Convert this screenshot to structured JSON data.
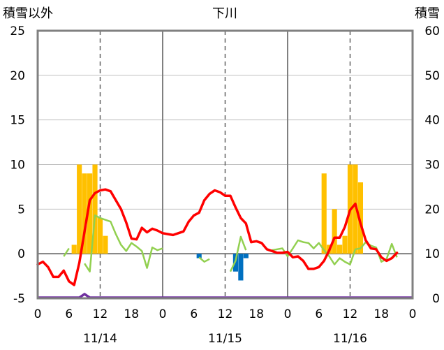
{
  "chart_data": {
    "type": "bar+line",
    "title": "下川",
    "left_axis_label": "積雪以外",
    "right_axis_label": "積雪",
    "y_left": {
      "min": -5,
      "max": 25,
      "ticks": [
        -5,
        0,
        5,
        10,
        15,
        20,
        25
      ]
    },
    "y_right": {
      "min": 0,
      "max": 60,
      "ticks": [
        0,
        10,
        20,
        30,
        40,
        50,
        60
      ]
    },
    "x_tick_labels": [
      "0",
      "6",
      "12",
      "18",
      "0",
      "6",
      "12",
      "18",
      "0",
      "6",
      "12",
      "18",
      "0"
    ],
    "date_labels": [
      "11/14",
      "11/15",
      "11/16"
    ],
    "x_range_hours": [
      0,
      72
    ],
    "grid": "vertical dashed at 12h, solid at day boundaries",
    "colors": {
      "precip_bar": "#FFC000",
      "negative_bar": "#0070C0",
      "temperature": "#FF0000",
      "wind": "#92D050",
      "snow_depth": "#7030A0"
    },
    "precipitation_bars": [
      {
        "x": 7,
        "y": 1
      },
      {
        "x": 8,
        "y": 10
      },
      {
        "x": 9,
        "y": 9
      },
      {
        "x": 10,
        "y": 9
      },
      {
        "x": 11,
        "y": 10
      },
      {
        "x": 12,
        "y": 4
      },
      {
        "x": 13,
        "y": 2
      },
      {
        "x": 55,
        "y": 9
      },
      {
        "x": 56,
        "y": 1
      },
      {
        "x": 57,
        "y": 5
      },
      {
        "x": 58,
        "y": 1
      },
      {
        "x": 59,
        "y": 2
      },
      {
        "x": 60,
        "y": 10
      },
      {
        "x": 61,
        "y": 10
      },
      {
        "x": 62,
        "y": 8
      }
    ],
    "negative_bars": [
      {
        "x": 31,
        "y": -0.5
      },
      {
        "x": 38,
        "y": -2
      },
      {
        "x": 39,
        "y": -3
      },
      {
        "x": 40,
        "y": -0.5
      }
    ],
    "temperature": [
      [
        0,
        -1.2
      ],
      [
        1,
        -0.9
      ],
      [
        2,
        -1.5
      ],
      [
        3,
        -2.6
      ],
      [
        4,
        -2.6
      ],
      [
        5,
        -1.9
      ],
      [
        6,
        -3.1
      ],
      [
        7,
        -3.5
      ],
      [
        8,
        -1.0
      ],
      [
        9,
        2.5
      ],
      [
        10,
        6.0
      ],
      [
        11,
        6.8
      ],
      [
        12,
        7.1
      ],
      [
        13,
        7.2
      ],
      [
        14,
        7.0
      ],
      [
        15,
        6.0
      ],
      [
        16,
        5.0
      ],
      [
        17,
        3.5
      ],
      [
        18,
        1.7
      ],
      [
        19,
        1.6
      ],
      [
        20,
        2.9
      ],
      [
        21,
        2.4
      ],
      [
        22,
        2.8
      ],
      [
        23,
        2.6
      ],
      [
        24,
        2.3
      ],
      [
        25,
        2.2
      ],
      [
        26,
        2.1
      ],
      [
        27,
        2.3
      ],
      [
        28,
        2.5
      ],
      [
        29,
        3.6
      ],
      [
        30,
        4.3
      ],
      [
        31,
        4.6
      ],
      [
        32,
        6.0
      ],
      [
        33,
        6.7
      ],
      [
        34,
        7.1
      ],
      [
        35,
        6.9
      ],
      [
        36,
        6.5
      ],
      [
        37,
        6.5
      ],
      [
        38,
        5.2
      ],
      [
        39,
        4.0
      ],
      [
        40,
        3.4
      ],
      [
        41,
        1.3
      ],
      [
        42,
        1.4
      ],
      [
        43,
        1.2
      ],
      [
        44,
        0.5
      ],
      [
        45,
        0.3
      ],
      [
        46,
        0.1
      ],
      [
        47,
        0.1
      ],
      [
        48,
        0.2
      ],
      [
        49,
        -0.4
      ],
      [
        50,
        -0.3
      ],
      [
        51,
        -0.8
      ],
      [
        52,
        -1.7
      ],
      [
        53,
        -1.7
      ],
      [
        54,
        -1.5
      ],
      [
        55,
        -0.8
      ],
      [
        56,
        0.4
      ],
      [
        57,
        1.8
      ],
      [
        58,
        1.8
      ],
      [
        59,
        3.0
      ],
      [
        60,
        4.9
      ],
      [
        61,
        5.6
      ],
      [
        62,
        3.4
      ],
      [
        63,
        1.5
      ],
      [
        64,
        0.6
      ],
      [
        65,
        0.5
      ],
      [
        66,
        -0.4
      ],
      [
        67,
        -0.8
      ],
      [
        68,
        -0.5
      ],
      [
        69,
        0.1
      ]
    ],
    "wind": [
      [
        [
          5,
          -0.3
        ],
        [
          6,
          0.6
        ]
      ],
      [
        [
          9,
          -1.1
        ],
        [
          10,
          -2.0
        ],
        [
          11,
          4.3
        ],
        [
          12,
          4.0
        ],
        [
          13,
          3.8
        ],
        [
          14,
          3.6
        ],
        [
          15,
          2.2
        ],
        [
          16,
          1.0
        ],
        [
          17,
          0.3
        ],
        [
          18,
          1.2
        ],
        [
          19,
          0.8
        ],
        [
          20,
          0.3
        ],
        [
          21,
          -1.6
        ],
        [
          22,
          0.7
        ],
        [
          23,
          0.4
        ],
        [
          24,
          0.6
        ]
      ],
      [
        [
          31,
          -0.4
        ],
        [
          32,
          -0.9
        ],
        [
          33,
          -0.6
        ]
      ],
      [
        [
          37,
          -2.0
        ],
        [
          38,
          -0.8
        ],
        [
          39,
          1.9
        ],
        [
          40,
          0.4
        ]
      ],
      [
        [
          45,
          0.4
        ],
        [
          46,
          0.5
        ],
        [
          47,
          0.6
        ],
        [
          48,
          -0.3
        ],
        [
          49,
          0.6
        ],
        [
          50,
          1.5
        ],
        [
          51,
          1.3
        ],
        [
          52,
          1.2
        ],
        [
          53,
          0.6
        ],
        [
          54,
          1.2
        ],
        [
          55,
          0.4
        ],
        [
          56,
          -0.3
        ],
        [
          57,
          -1.2
        ],
        [
          58,
          -0.5
        ],
        [
          59,
          -0.9
        ],
        [
          60,
          -1.2
        ],
        [
          61,
          0.5
        ],
        [
          62,
          0.6
        ],
        [
          63,
          1.3
        ],
        [
          64,
          0.9
        ],
        [
          65,
          0.7
        ],
        [
          66,
          -0.9
        ],
        [
          67,
          -0.6
        ],
        [
          68,
          1.1
        ],
        [
          69,
          -0.4
        ]
      ]
    ],
    "snow_depth": [
      [
        0,
        0
      ],
      [
        8,
        0
      ],
      [
        9,
        0.8
      ],
      [
        10,
        0
      ],
      [
        72,
        0
      ]
    ]
  }
}
